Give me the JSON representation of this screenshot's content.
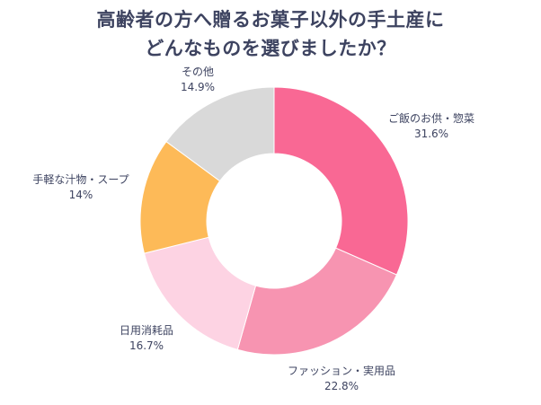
{
  "chart_data": {
    "type": "pie",
    "donut": true,
    "title": [
      "高齢者の方へ贈るお菓子以外の手土産に",
      "どんなものを選びましたか？"
    ],
    "categories": [
      "ご飯のお供・惣菜",
      "ファッション・実用品",
      "日用消耗品",
      "手軽な汁物・スープ",
      "その他"
    ],
    "values": [
      31.6,
      22.8,
      16.7,
      14,
      14.9
    ],
    "value_labels": [
      "31.6%",
      "22.8%",
      "16.7%",
      "14%",
      "14.9%"
    ],
    "colors": [
      "#F96894",
      "#F794B1",
      "#FDD3E3",
      "#FDBA58",
      "#D9D9D9"
    ],
    "legend": "none"
  }
}
